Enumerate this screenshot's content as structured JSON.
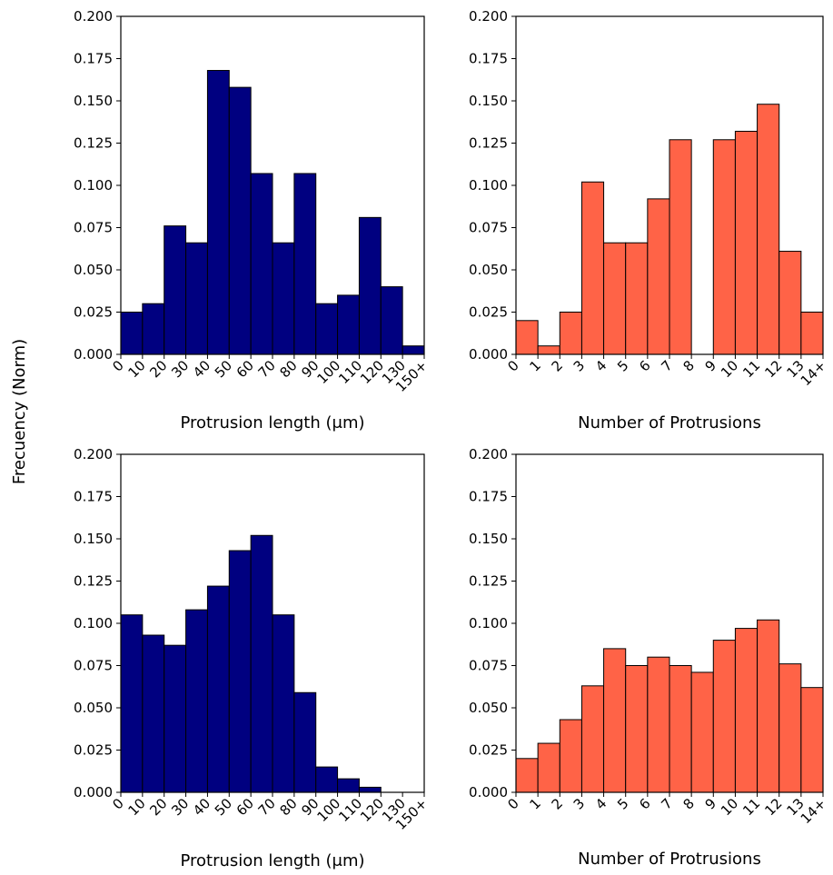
{
  "figure": {
    "ylabel": "Frecuency (Norm)"
  },
  "chart_data": [
    {
      "type": "bar",
      "xlabel": "Protrusion length (μm)",
      "ylabel": "Frecuency (Norm)",
      "ylim": [
        0,
        0.2
      ],
      "yticks": [
        "0.000",
        "0.025",
        "0.050",
        "0.075",
        "0.100",
        "0.125",
        "0.150",
        "0.175",
        "0.200"
      ],
      "xticks": [
        "0",
        "10",
        "20",
        "30",
        "40",
        "50",
        "60",
        "70",
        "80",
        "90",
        "100",
        "110",
        "120",
        "130",
        "150+"
      ],
      "values": [
        0.025,
        0.03,
        0.076,
        0.066,
        0.168,
        0.158,
        0.107,
        0.066,
        0.107,
        0.03,
        0.035,
        0.081,
        0.04,
        0.005
      ],
      "color": "#000080",
      "grid": false
    },
    {
      "type": "bar",
      "xlabel": "Number of Protrusions",
      "ylabel": "Frecuency (Norm)",
      "ylim": [
        0,
        0.2
      ],
      "yticks": [
        "0.000",
        "0.025",
        "0.050",
        "0.075",
        "0.100",
        "0.125",
        "0.150",
        "0.175",
        "0.200"
      ],
      "xticks": [
        "0",
        "1",
        "2",
        "3",
        "4",
        "5",
        "6",
        "7",
        "8",
        "9",
        "10",
        "11",
        "12",
        "13",
        "14+"
      ],
      "values": [
        0.02,
        0.005,
        0.025,
        0.102,
        0.066,
        0.066,
        0.092,
        0.127,
        0,
        0.127,
        0.132,
        0.148,
        0.061,
        0.025
      ],
      "color": "#ff6347",
      "grid": false
    },
    {
      "type": "bar",
      "xlabel": "Protrusion length (μm)",
      "ylabel": "Frecuency (Norm)",
      "ylim": [
        0,
        0.2
      ],
      "yticks": [
        "0.000",
        "0.025",
        "0.050",
        "0.075",
        "0.100",
        "0.125",
        "0.150",
        "0.175",
        "0.200"
      ],
      "xticks": [
        "0",
        "10",
        "20",
        "30",
        "40",
        "50",
        "60",
        "70",
        "80",
        "90",
        "100",
        "110",
        "120",
        "130",
        "150+"
      ],
      "values": [
        0.105,
        0.093,
        0.087,
        0.108,
        0.122,
        0.143,
        0.152,
        0.105,
        0.059,
        0.015,
        0.008,
        0.003,
        0,
        0
      ],
      "color": "#000080",
      "grid": false
    },
    {
      "type": "bar",
      "xlabel": "Number of Protrusions",
      "ylabel": "Frecuency (Norm)",
      "ylim": [
        0,
        0.2
      ],
      "yticks": [
        "0.000",
        "0.025",
        "0.050",
        "0.075",
        "0.100",
        "0.125",
        "0.150",
        "0.175",
        "0.200"
      ],
      "xticks": [
        "0",
        "1",
        "2",
        "3",
        "4",
        "5",
        "6",
        "7",
        "8",
        "9",
        "10",
        "11",
        "12",
        "13",
        "14+"
      ],
      "values": [
        0.02,
        0.029,
        0.043,
        0.063,
        0.085,
        0.075,
        0.08,
        0.075,
        0.071,
        0.09,
        0.097,
        0.102,
        0.076,
        0.062
      ],
      "color": "#ff6347",
      "grid": false
    }
  ]
}
